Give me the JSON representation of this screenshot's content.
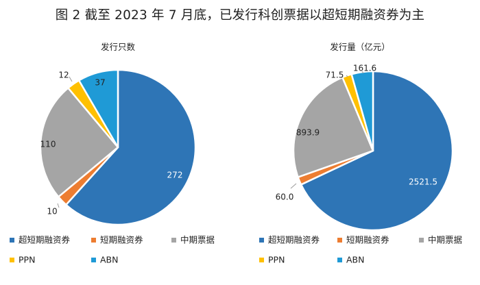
{
  "figure_title": "图 2  截至 2023 年 7 月底，已发行科创票据以超短期融资券为主",
  "chart_data": [
    {
      "type": "pie",
      "title": "发行只数",
      "labels": [
        "超短期融资券",
        "短期融资券",
        "中期票据",
        "PPN",
        "ABN"
      ],
      "values": [
        272,
        10,
        110,
        12,
        37
      ],
      "value_labels": [
        "272",
        "10",
        "110",
        "12",
        "37"
      ],
      "colors": [
        "#2e75b6",
        "#ed7d31",
        "#a5a5a5",
        "#ffc000",
        "#1f9ad6"
      ],
      "legend_position": "bottom"
    },
    {
      "type": "pie",
      "title": "发行量（亿元）",
      "labels": [
        "超短期融资券",
        "短期融资券",
        "中期票据",
        "PPN",
        "ABN"
      ],
      "values": [
        2521.5,
        60.0,
        893.9,
        71.5,
        161.6
      ],
      "value_labels": [
        "2521.5",
        "60.0",
        "893.9",
        "71.5",
        "161.6"
      ],
      "colors": [
        "#2e75b6",
        "#ed7d31",
        "#a5a5a5",
        "#ffc000",
        "#1f9ad6"
      ],
      "legend_position": "bottom"
    }
  ]
}
